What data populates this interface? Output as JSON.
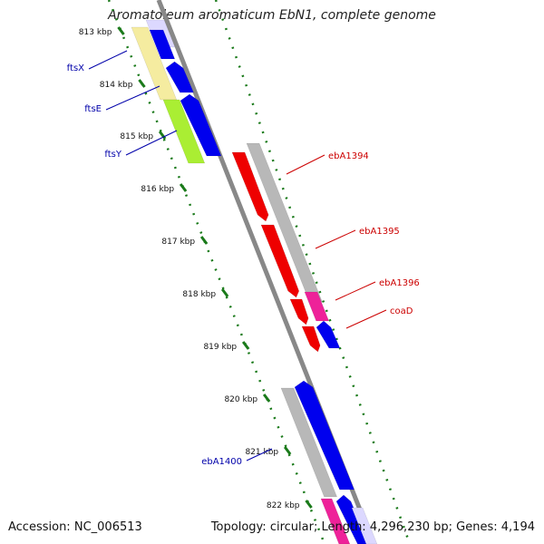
{
  "title": "Aromatoleum aromaticum EbN1, complete genome",
  "footer": {
    "accession_label": "Accession:",
    "accession": "NC_006513",
    "topology_label": "Topology:",
    "topology": "circular",
    "length_label": "Length:",
    "length": "4,296,230 bp",
    "genes_label": "Genes:",
    "genes": "4,194"
  },
  "colors": {
    "backbone": "#888888",
    "tick": "#1a7a1a",
    "forward_gene": "#0000ee",
    "reverse_gene": "#ee0000",
    "neutral_gene": "#b8b8b8",
    "label_blue": "#0000aa",
    "label_red": "#cc0000",
    "cog_yellow": "#f5eca0",
    "cog_green": "#aaee33",
    "cog_magenta": "#ee2299"
  },
  "kbp_labels": [
    "813 kbp",
    "814 kbp",
    "815 kbp",
    "816 kbp",
    "817 kbp",
    "818 kbp",
    "819 kbp",
    "820 kbp",
    "821 kbp",
    "822 kbp"
  ],
  "genes": [
    {
      "name": "ftsX",
      "strand": "forward",
      "side": "left"
    },
    {
      "name": "ftsE",
      "strand": "forward",
      "side": "left"
    },
    {
      "name": "ftsY",
      "strand": "forward",
      "side": "left"
    },
    {
      "name": "ebA1394",
      "strand": "reverse",
      "side": "right"
    },
    {
      "name": "ebA1395",
      "strand": "reverse",
      "side": "right"
    },
    {
      "name": "ebA1396",
      "strand": "reverse",
      "side": "right"
    },
    {
      "name": "coaD",
      "strand": "forward",
      "side": "right"
    },
    {
      "name": "ebA1400",
      "strand": "forward",
      "side": "left"
    }
  ]
}
